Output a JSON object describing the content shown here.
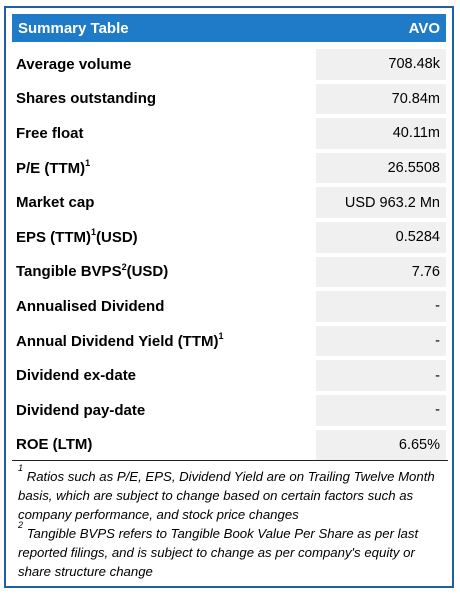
{
  "header": {
    "title": "Summary Table",
    "ticker": "AVO"
  },
  "rows": [
    {
      "label": "Average volume",
      "sup": "",
      "suffix": "",
      "value": "708.48k"
    },
    {
      "label": "Shares outstanding",
      "sup": "",
      "suffix": "",
      "value": "70.84m"
    },
    {
      "label": "Free float",
      "sup": "",
      "suffix": "",
      "value": "40.11m"
    },
    {
      "label": "P/E (TTM)",
      "sup": "1",
      "suffix": "",
      "value": "26.5508"
    },
    {
      "label": "Market cap",
      "sup": "",
      "suffix": "",
      "value": "USD 963.2 Mn"
    },
    {
      "label": "EPS (TTM)",
      "sup": "1",
      "suffix": " (USD)",
      "value": "0.5284"
    },
    {
      "label": "Tangible BVPS",
      "sup": "2",
      "suffix": " (USD)",
      "value": "7.76"
    },
    {
      "label": "Annualised Dividend",
      "sup": "",
      "suffix": "",
      "value": "-"
    },
    {
      "label": "Annual Dividend Yield (TTM)",
      "sup": "1",
      "suffix": "",
      "value": "-"
    },
    {
      "label": "Dividend ex-date",
      "sup": "",
      "suffix": "",
      "value": "-"
    },
    {
      "label": "Dividend pay-date",
      "sup": "",
      "suffix": "",
      "value": "-"
    },
    {
      "label": "ROE (LTM)",
      "sup": "",
      "suffix": "",
      "value": "6.65%"
    }
  ],
  "footnotes": [
    {
      "mark": "1",
      "text": "Ratios such as P/E, EPS, Dividend Yield are on Trailing Twelve Month basis, which are subject to change based on certain factors such as company performance, and stock price changes"
    },
    {
      "mark": "2",
      "text": "Tangible BVPS refers to Tangible Book Value Per Share as per last reported filings, and is subject to change as per company's equity or share structure change"
    }
  ]
}
